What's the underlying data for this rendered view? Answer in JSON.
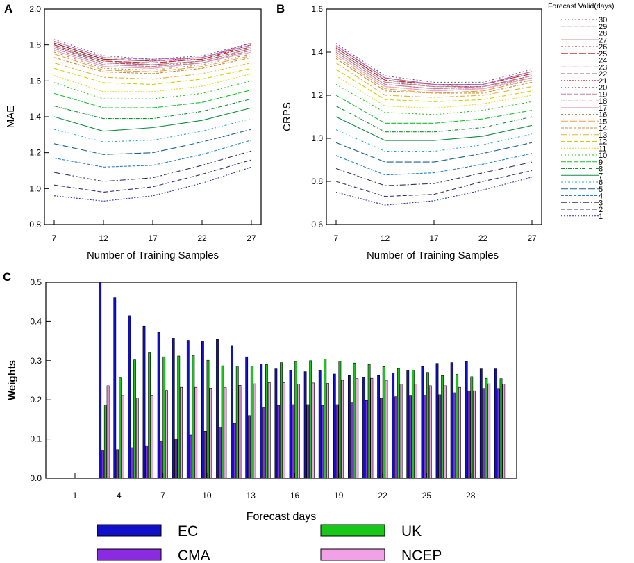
{
  "chart_data": [
    {
      "panel": "A",
      "type": "line",
      "ylabel": "MAE",
      "xlabel": "Number of Training Samples",
      "x": [
        7,
        12,
        17,
        22,
        27
      ],
      "ylim": [
        0.8,
        2.0
      ],
      "yticks": [
        "0.8",
        "1.0",
        "1.2",
        "1.4",
        "1.6",
        "1.8",
        "2.0"
      ],
      "xticks": [
        "7",
        "12",
        "17",
        "22",
        "27"
      ],
      "series_note": "30 series, one per forecast valid day (1..30); values listed in legend order 1..30",
      "series": [
        {
          "name": "1",
          "values": [
            0.96,
            0.93,
            0.96,
            1.03,
            1.12
          ]
        },
        {
          "name": "2",
          "values": [
            1.02,
            0.98,
            1.01,
            1.08,
            1.16
          ]
        },
        {
          "name": "3",
          "values": [
            1.09,
            1.04,
            1.06,
            1.13,
            1.21
          ]
        },
        {
          "name": "4",
          "values": [
            1.17,
            1.12,
            1.13,
            1.19,
            1.27
          ]
        },
        {
          "name": "5",
          "values": [
            1.25,
            1.19,
            1.2,
            1.26,
            1.33
          ]
        },
        {
          "name": "6",
          "values": [
            1.33,
            1.26,
            1.27,
            1.32,
            1.39
          ]
        },
        {
          "name": "7",
          "values": [
            1.4,
            1.32,
            1.34,
            1.38,
            1.45
          ]
        },
        {
          "name": "8",
          "values": [
            1.46,
            1.39,
            1.39,
            1.43,
            1.5
          ]
        },
        {
          "name": "9",
          "values": [
            1.53,
            1.45,
            1.45,
            1.48,
            1.55
          ]
        },
        {
          "name": "10",
          "values": [
            1.59,
            1.5,
            1.5,
            1.53,
            1.6
          ]
        },
        {
          "name": "11",
          "values": [
            1.63,
            1.54,
            1.54,
            1.57,
            1.64
          ]
        },
        {
          "name": "12",
          "values": [
            1.67,
            1.59,
            1.58,
            1.61,
            1.67
          ]
        },
        {
          "name": "13",
          "values": [
            1.7,
            1.62,
            1.61,
            1.64,
            1.7
          ]
        },
        {
          "name": "14",
          "values": [
            1.73,
            1.65,
            1.64,
            1.67,
            1.73
          ]
        },
        {
          "name": "15",
          "values": [
            1.75,
            1.66,
            1.65,
            1.68,
            1.74
          ]
        },
        {
          "name": "16",
          "values": [
            1.76,
            1.67,
            1.66,
            1.69,
            1.75
          ]
        },
        {
          "name": "17",
          "values": [
            1.77,
            1.68,
            1.67,
            1.7,
            1.76
          ]
        },
        {
          "name": "18",
          "values": [
            1.77,
            1.68,
            1.67,
            1.7,
            1.76
          ]
        },
        {
          "name": "19",
          "values": [
            1.78,
            1.69,
            1.68,
            1.7,
            1.77
          ]
        },
        {
          "name": "20",
          "values": [
            1.78,
            1.69,
            1.68,
            1.71,
            1.77
          ]
        },
        {
          "name": "21",
          "values": [
            1.79,
            1.7,
            1.69,
            1.71,
            1.78
          ]
        },
        {
          "name": "22",
          "values": [
            1.79,
            1.7,
            1.69,
            1.71,
            1.78
          ]
        },
        {
          "name": "23",
          "values": [
            1.79,
            1.71,
            1.69,
            1.71,
            1.78
          ]
        },
        {
          "name": "24",
          "values": [
            1.8,
            1.71,
            1.7,
            1.72,
            1.79
          ]
        },
        {
          "name": "25",
          "values": [
            1.8,
            1.71,
            1.7,
            1.72,
            1.79
          ]
        },
        {
          "name": "26",
          "values": [
            1.81,
            1.72,
            1.71,
            1.72,
            1.8
          ]
        },
        {
          "name": "27",
          "values": [
            1.81,
            1.72,
            1.71,
            1.73,
            1.8
          ]
        },
        {
          "name": "28",
          "values": [
            1.82,
            1.73,
            1.71,
            1.73,
            1.8
          ]
        },
        {
          "name": "29",
          "values": [
            1.82,
            1.73,
            1.72,
            1.73,
            1.81
          ]
        },
        {
          "name": "30",
          "values": [
            1.83,
            1.74,
            1.72,
            1.74,
            1.81
          ]
        }
      ]
    },
    {
      "panel": "B",
      "type": "line",
      "ylabel": "CRPS",
      "xlabel": "Number of Training Samples",
      "x": [
        7,
        12,
        17,
        22,
        27
      ],
      "ylim": [
        0.6,
        1.6
      ],
      "yticks": [
        "0.6",
        "0.8",
        "1.0",
        "1.2",
        "1.4",
        "1.6"
      ],
      "xticks": [
        "7",
        "12",
        "17",
        "22",
        "27"
      ],
      "series": [
        {
          "name": "1",
          "values": [
            0.75,
            0.69,
            0.71,
            0.76,
            0.82
          ]
        },
        {
          "name": "2",
          "values": [
            0.8,
            0.73,
            0.74,
            0.8,
            0.85
          ]
        },
        {
          "name": "3",
          "values": [
            0.86,
            0.78,
            0.79,
            0.84,
            0.89
          ]
        },
        {
          "name": "4",
          "values": [
            0.92,
            0.83,
            0.84,
            0.88,
            0.93
          ]
        },
        {
          "name": "5",
          "values": [
            0.98,
            0.89,
            0.89,
            0.93,
            0.98
          ]
        },
        {
          "name": "6",
          "values": [
            1.04,
            0.94,
            0.94,
            0.97,
            1.02
          ]
        },
        {
          "name": "7",
          "values": [
            1.1,
            0.99,
            0.99,
            1.01,
            1.06
          ]
        },
        {
          "name": "8",
          "values": [
            1.15,
            1.03,
            1.03,
            1.05,
            1.1
          ]
        },
        {
          "name": "9",
          "values": [
            1.2,
            1.07,
            1.07,
            1.09,
            1.13
          ]
        },
        {
          "name": "10",
          "values": [
            1.25,
            1.12,
            1.11,
            1.13,
            1.17
          ]
        },
        {
          "name": "11",
          "values": [
            1.29,
            1.15,
            1.14,
            1.16,
            1.2
          ]
        },
        {
          "name": "12",
          "values": [
            1.32,
            1.18,
            1.17,
            1.18,
            1.22
          ]
        },
        {
          "name": "13",
          "values": [
            1.35,
            1.2,
            1.19,
            1.2,
            1.24
          ]
        },
        {
          "name": "14",
          "values": [
            1.37,
            1.22,
            1.21,
            1.21,
            1.26
          ]
        },
        {
          "name": "15",
          "values": [
            1.38,
            1.23,
            1.21,
            1.22,
            1.27
          ]
        },
        {
          "name": "16",
          "values": [
            1.39,
            1.24,
            1.22,
            1.23,
            1.27
          ]
        },
        {
          "name": "17",
          "values": [
            1.39,
            1.24,
            1.22,
            1.23,
            1.28
          ]
        },
        {
          "name": "18",
          "values": [
            1.4,
            1.25,
            1.23,
            1.23,
            1.28
          ]
        },
        {
          "name": "19",
          "values": [
            1.4,
            1.25,
            1.23,
            1.24,
            1.28
          ]
        },
        {
          "name": "20",
          "values": [
            1.4,
            1.25,
            1.23,
            1.24,
            1.29
          ]
        },
        {
          "name": "21",
          "values": [
            1.41,
            1.26,
            1.24,
            1.24,
            1.29
          ]
        },
        {
          "name": "22",
          "values": [
            1.41,
            1.26,
            1.24,
            1.24,
            1.29
          ]
        },
        {
          "name": "23",
          "values": [
            1.41,
            1.26,
            1.24,
            1.24,
            1.29
          ]
        },
        {
          "name": "24",
          "values": [
            1.42,
            1.27,
            1.24,
            1.25,
            1.3
          ]
        },
        {
          "name": "25",
          "values": [
            1.42,
            1.27,
            1.25,
            1.25,
            1.3
          ]
        },
        {
          "name": "26",
          "values": [
            1.42,
            1.27,
            1.25,
            1.25,
            1.3
          ]
        },
        {
          "name": "27",
          "values": [
            1.43,
            1.28,
            1.25,
            1.25,
            1.31
          ]
        },
        {
          "name": "28",
          "values": [
            1.43,
            1.28,
            1.25,
            1.25,
            1.31
          ]
        },
        {
          "name": "29",
          "values": [
            1.43,
            1.28,
            1.25,
            1.25,
            1.31
          ]
        },
        {
          "name": "30",
          "values": [
            1.44,
            1.29,
            1.26,
            1.26,
            1.32
          ]
        }
      ]
    },
    {
      "panel": "C",
      "type": "bar",
      "ylabel": "Weights",
      "xlabel": "Forecast days",
      "ylim": [
        0.0,
        0.5
      ],
      "yticks": [
        "0.0",
        "0.1",
        "0.2",
        "0.3",
        "0.4",
        "0.5"
      ],
      "xticks": [
        "1",
        "4",
        "7",
        "10",
        "13",
        "16",
        "19",
        "22",
        "25",
        "28"
      ],
      "categories": [
        3,
        4,
        5,
        6,
        7,
        8,
        9,
        10,
        11,
        12,
        13,
        14,
        15,
        16,
        17,
        18,
        19,
        20,
        21,
        22,
        23,
        24,
        25,
        26,
        27,
        28,
        29,
        30
      ],
      "series": [
        {
          "name": "EC",
          "values": [
            0.5,
            0.46,
            0.415,
            0.388,
            0.372,
            0.357,
            0.352,
            0.35,
            0.354,
            0.337,
            0.31,
            0.292,
            0.279,
            0.275,
            0.272,
            0.275,
            0.266,
            0.262,
            0.258,
            0.262,
            0.269,
            0.276,
            0.285,
            0.293,
            0.295,
            0.298,
            0.279,
            0.279
          ]
        },
        {
          "name": "CMA",
          "values": [
            0.07,
            0.073,
            0.078,
            0.083,
            0.093,
            0.1,
            0.11,
            0.12,
            0.13,
            0.14,
            0.16,
            0.18,
            0.186,
            0.188,
            0.188,
            0.186,
            0.188,
            0.192,
            0.198,
            0.204,
            0.208,
            0.21,
            0.21,
            0.213,
            0.218,
            0.223,
            0.229,
            0.229
          ]
        },
        {
          "name": "UK",
          "values": [
            0.187,
            0.256,
            0.302,
            0.32,
            0.31,
            0.312,
            0.313,
            0.301,
            0.287,
            0.286,
            0.286,
            0.29,
            0.295,
            0.298,
            0.3,
            0.304,
            0.299,
            0.294,
            0.29,
            0.285,
            0.28,
            0.276,
            0.27,
            0.262,
            0.265,
            0.259,
            0.255,
            0.254
          ]
        },
        {
          "name": "NCEP",
          "values": [
            0.236,
            0.211,
            0.205,
            0.21,
            0.224,
            0.232,
            0.232,
            0.23,
            0.231,
            0.237,
            0.241,
            0.244,
            0.244,
            0.24,
            0.243,
            0.242,
            0.25,
            0.254,
            0.255,
            0.25,
            0.24,
            0.24,
            0.236,
            0.236,
            0.232,
            0.223,
            0.241,
            0.24
          ]
        }
      ]
    }
  ],
  "labels": {
    "panel_a": "A",
    "panel_b": "B",
    "panel_c": "C",
    "legend_title": "Forecast Valid(days)",
    "legend_days": [
      "30",
      "29",
      "28",
      "27",
      "26",
      "25",
      "24",
      "23",
      "22",
      "21",
      "20",
      "19",
      "18",
      "17",
      "16",
      "15",
      "14",
      "13",
      "12",
      "11",
      "10",
      "9",
      "8",
      "7",
      "6",
      "5",
      "4",
      "3",
      "2",
      "1"
    ]
  },
  "bar_legend": [
    {
      "name": "EC",
      "color": "#1010c8"
    },
    {
      "name": "UK",
      "color": "#18c818"
    },
    {
      "name": "CMA",
      "color": "#8a2be2"
    },
    {
      "name": "NCEP",
      "color": "#f2a0e8"
    }
  ],
  "series_colors": [
    "#2030a0",
    "#303070",
    "#303060",
    "#2a7fbf",
    "#1a6090",
    "#20a8d0",
    "#108a40",
    "#109030",
    "#18c030",
    "#28c018",
    "#d8d820",
    "#d0d000",
    "#e8b030",
    "#c09040",
    "#e8a040",
    "#b09050",
    "#f0a0c0",
    "#e0a0d0",
    "#c080a0",
    "#c08080",
    "#e03040",
    "#806080",
    "#c09090",
    "#b0b0b0",
    "#c03030",
    "#d02020",
    "#903030",
    "#e080e0",
    "#c060c0",
    "#606070"
  ]
}
